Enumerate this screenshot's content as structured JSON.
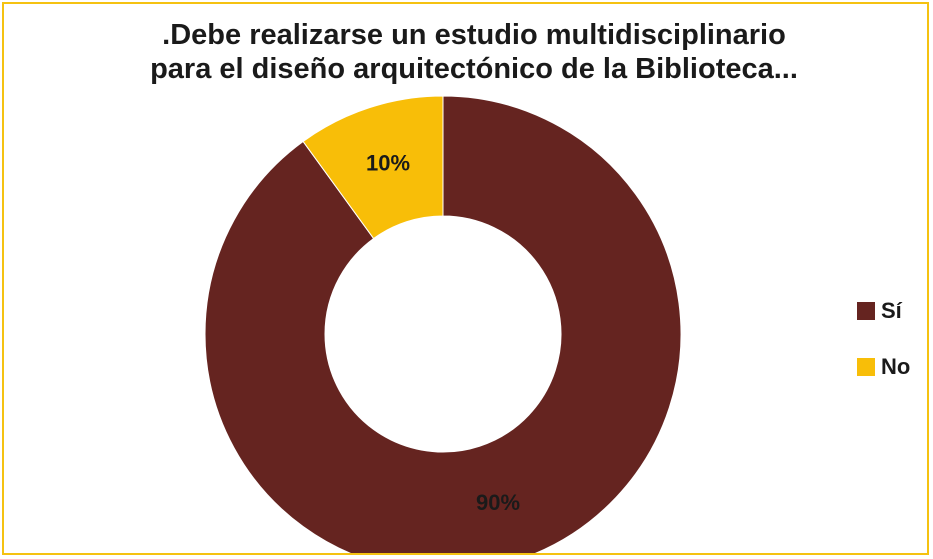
{
  "chart_data": {
    "type": "pie",
    "variant": "donut",
    "title_lines": [
      ".Debe realizarse un estudio multidisciplinario",
      "para el diseño arquitectónico de la Biblioteca..."
    ],
    "categories": [
      "Sí",
      "No"
    ],
    "values": [
      90,
      10
    ],
    "data_labels": [
      "90%",
      "10%"
    ],
    "colors": [
      "#652420",
      "#f8be08"
    ],
    "legend_position": "right",
    "start_angle": "top, clockwise"
  },
  "theme": {
    "frame_border": "#f5c211",
    "background": "#ffffff"
  }
}
